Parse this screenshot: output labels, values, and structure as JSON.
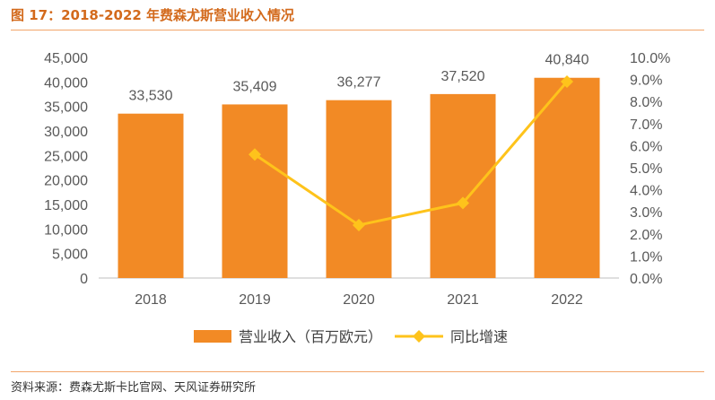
{
  "title": "图 17：2018-2022 年费森尤斯营业收入情况",
  "source": "资料来源：费森尤斯卡比官网、天风证券研究所",
  "colors": {
    "bar": "#f28a25",
    "line": "#fec31b",
    "title": "#d36a1c",
    "rule": "#f2a56a"
  },
  "chart_data": {
    "type": "bar",
    "categories": [
      "2018",
      "2019",
      "2020",
      "2021",
      "2022"
    ],
    "series": [
      {
        "name": "营业收入（百万欧元）",
        "type": "bar",
        "axis": "left",
        "values": [
          33530,
          35409,
          36277,
          37520,
          40840
        ],
        "labels": [
          "33,530",
          "35,409",
          "36,277",
          "37,520",
          "40,840"
        ]
      },
      {
        "name": "同比增速",
        "type": "line",
        "axis": "right",
        "marker": "diamond",
        "values": [
          null,
          5.6,
          2.4,
          3.4,
          8.9
        ]
      }
    ],
    "y_left": {
      "min": 0,
      "max": 45000,
      "step": 5000,
      "ticks": [
        "0",
        "5,000",
        "10,000",
        "15,000",
        "20,000",
        "25,000",
        "30,000",
        "35,000",
        "40,000",
        "45,000"
      ]
    },
    "y_right": {
      "min": 0,
      "max": 10,
      "step": 1,
      "unit": "%",
      "ticks": [
        "0.0%",
        "1.0%",
        "2.0%",
        "3.0%",
        "4.0%",
        "5.0%",
        "6.0%",
        "7.0%",
        "8.0%",
        "9.0%",
        "10.0%"
      ]
    },
    "grid": false,
    "legend": "bottom"
  }
}
